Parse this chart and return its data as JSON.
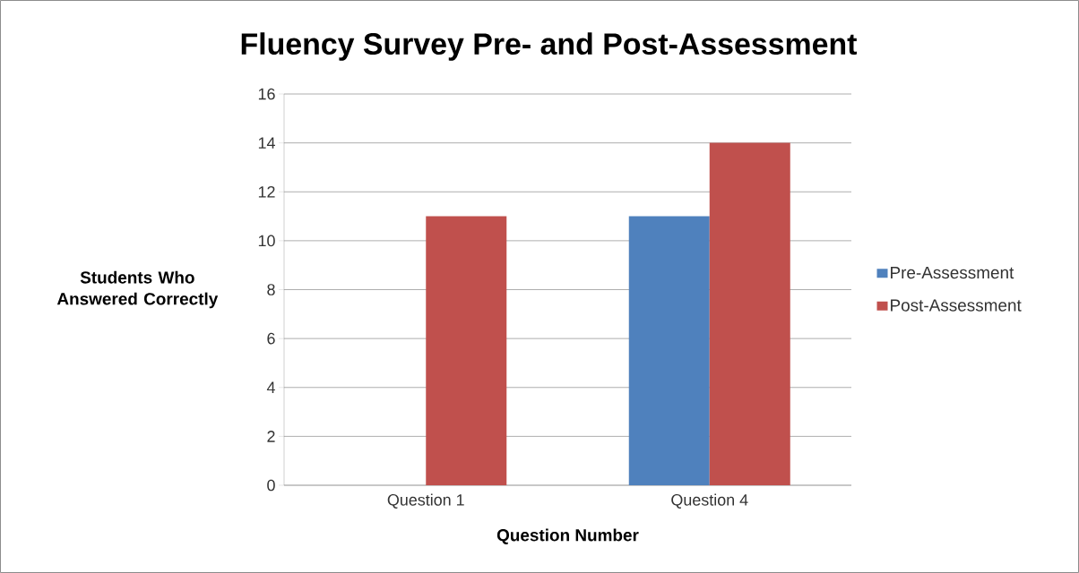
{
  "chart_data": {
    "type": "bar",
    "title": "Fluency Survey Pre- and Post-Assessment",
    "xlabel": "Question Number",
    "ylabel": "Students Who Answered Correctly",
    "categories": [
      "Question 1",
      "Question 4"
    ],
    "series": [
      {
        "name": "Pre-Assessment",
        "color": "#4f81bd",
        "values": [
          0,
          11
        ]
      },
      {
        "name": "Post-Assessment",
        "color": "#c0504d",
        "values": [
          11,
          14
        ]
      }
    ],
    "ylim": [
      0,
      16
    ],
    "yticks": [
      0,
      2,
      4,
      6,
      8,
      10,
      12,
      14,
      16
    ],
    "grid": "y",
    "legend": "right"
  }
}
